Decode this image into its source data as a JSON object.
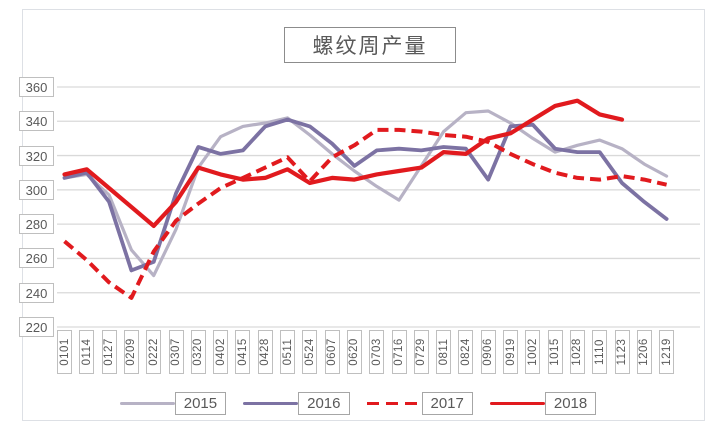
{
  "chart_data": {
    "type": "line",
    "title": "螺纹周产量",
    "xlabel": "",
    "ylabel": "",
    "ylim": [
      220,
      360
    ],
    "y_ticks": [
      360,
      340,
      320,
      300,
      280,
      260,
      240,
      220
    ],
    "grid": "horizontal",
    "legend_position": "bottom",
    "categories": [
      "0101",
      "0114",
      "0127",
      "0209",
      "0222",
      "0307",
      "0320",
      "0402",
      "0415",
      "0428",
      "0511",
      "0524",
      "0607",
      "0620",
      "0703",
      "0716",
      "0729",
      "0811",
      "0824",
      "0906",
      "0919",
      "1002",
      "1015",
      "1028",
      "1110",
      "1123",
      "1206",
      "1219"
    ],
    "series": [
      {
        "name": "2015",
        "color": "#b7b2c5",
        "style": "solid",
        "width": 3.2,
        "values": [
          307,
          309,
          297,
          265,
          250,
          277,
          313,
          331,
          337,
          339,
          342,
          332,
          321,
          311,
          302,
          294,
          314,
          334,
          345,
          346,
          339,
          330,
          322,
          326,
          329,
          324,
          315,
          308
        ]
      },
      {
        "name": "2016",
        "color": "#7c72a3",
        "style": "solid",
        "width": 3.8,
        "values": [
          307,
          310,
          293,
          253,
          258,
          298,
          325,
          321,
          323,
          337,
          341,
          337,
          327,
          314,
          323,
          324,
          323,
          325,
          324,
          306,
          337,
          338,
          324,
          322,
          322,
          304,
          293,
          283
        ]
      },
      {
        "name": "2017",
        "color": "#e11a1e",
        "style": "dashed",
        "width": 4,
        "values": [
          270,
          259,
          246,
          237,
          264,
          282,
          292,
          301,
          307,
          313,
          319,
          305,
          319,
          326,
          335,
          335,
          334,
          332,
          331,
          328,
          321,
          315,
          310,
          307,
          306,
          308,
          306,
          303
        ]
      },
      {
        "name": "2018",
        "color": "#e11a1e",
        "style": "solid",
        "width": 4.2,
        "values": [
          309,
          312,
          301,
          290,
          279,
          293,
          313,
          309,
          306,
          307,
          312,
          304,
          307,
          306,
          309,
          311,
          313,
          322,
          321,
          330,
          333,
          341,
          349,
          352,
          344,
          341,
          null,
          null
        ]
      }
    ],
    "colors": {
      "gridline": "#d9d9d9",
      "axis_text": "#595959",
      "tick_box_border": "#bfbfbf",
      "title_box_border": "#8c8c8c",
      "legend_box_border": "#a6a6a6",
      "background": "#ffffff"
    }
  }
}
